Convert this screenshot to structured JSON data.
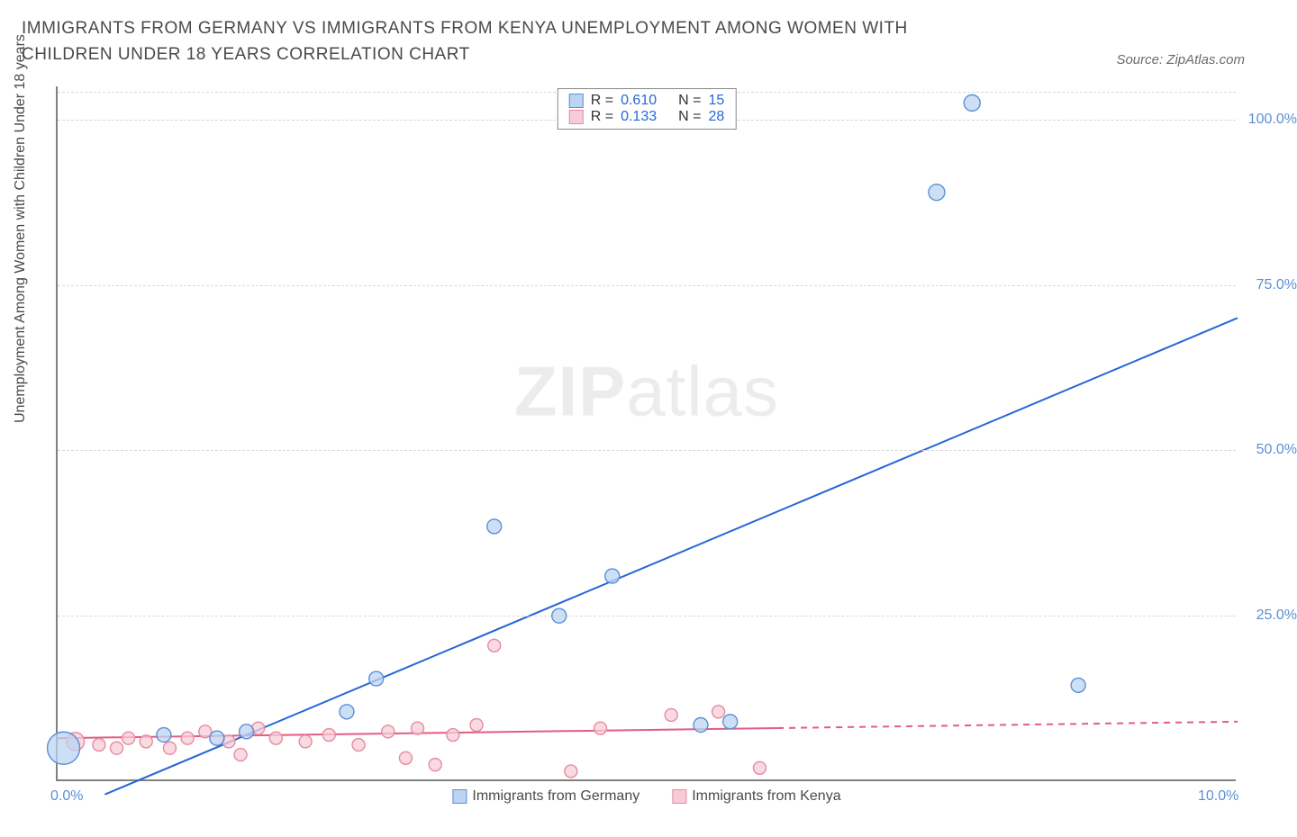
{
  "header": {
    "title": "IMMIGRANTS FROM GERMANY VS IMMIGRANTS FROM KENYA UNEMPLOYMENT AMONG WOMEN WITH CHILDREN UNDER 18 YEARS CORRELATION CHART",
    "source": "Source: ZipAtlas.com"
  },
  "watermark": {
    "bold": "ZIP",
    "thin": "atlas"
  },
  "chart": {
    "type": "scatter-with-regression",
    "ylabel": "Unemployment Among Women with Children Under 18 years",
    "xlim": [
      0,
      10
    ],
    "ylim": [
      0,
      105
    ],
    "xticks": [
      {
        "v": 0,
        "label": "0.0%"
      },
      {
        "v": 10,
        "label": "10.0%"
      }
    ],
    "yticks": [
      {
        "v": 25,
        "label": "25.0%"
      },
      {
        "v": 50,
        "label": "50.0%"
      },
      {
        "v": 75,
        "label": "75.0%"
      },
      {
        "v": 100,
        "label": "100.0%"
      }
    ],
    "grid_dash": "6,5",
    "grid_color": "#d8d8d8",
    "background_color": "#ffffff",
    "series": [
      {
        "name": "Immigrants from Germany",
        "color_fill": "#bcd4f2",
        "color_stroke": "#5b8fd6",
        "line_color": "#2766d8",
        "line_width": 2,
        "r_value": "0.610",
        "n_value": "15",
        "regression": {
          "x1": 0.4,
          "y1": -2,
          "x2": 10,
          "y2": 70,
          "dash_from_x": null
        },
        "points": [
          {
            "x": 0.05,
            "y": 5.0,
            "r": 18
          },
          {
            "x": 0.9,
            "y": 7.0,
            "r": 8
          },
          {
            "x": 1.35,
            "y": 6.5,
            "r": 8
          },
          {
            "x": 1.6,
            "y": 7.5,
            "r": 8
          },
          {
            "x": 2.45,
            "y": 10.5,
            "r": 8
          },
          {
            "x": 2.7,
            "y": 15.5,
            "r": 8
          },
          {
            "x": 3.7,
            "y": 38.5,
            "r": 8
          },
          {
            "x": 4.25,
            "y": 25.0,
            "r": 8
          },
          {
            "x": 4.7,
            "y": 31.0,
            "r": 8
          },
          {
            "x": 5.45,
            "y": 8.5,
            "r": 8
          },
          {
            "x": 5.7,
            "y": 9.0,
            "r": 8
          },
          {
            "x": 7.45,
            "y": 89.0,
            "r": 9
          },
          {
            "x": 7.75,
            "y": 102.5,
            "r": 9
          },
          {
            "x": 8.65,
            "y": 14.5,
            "r": 8
          }
        ]
      },
      {
        "name": "Immigrants from Kenya",
        "color_fill": "#f6cdd6",
        "color_stroke": "#e68aa4",
        "line_color": "#e45b85",
        "line_width": 2,
        "r_value": "0.133",
        "n_value": "28",
        "regression": {
          "x1": 0,
          "y1": 6.5,
          "x2": 10,
          "y2": 9.0,
          "dash_from_x": 6.1
        },
        "points": [
          {
            "x": 0.15,
            "y": 6.0,
            "r": 10
          },
          {
            "x": 0.35,
            "y": 5.5,
            "r": 7
          },
          {
            "x": 0.5,
            "y": 5.0,
            "r": 7
          },
          {
            "x": 0.6,
            "y": 6.5,
            "r": 7
          },
          {
            "x": 0.75,
            "y": 6.0,
            "r": 7
          },
          {
            "x": 0.95,
            "y": 5.0,
            "r": 7
          },
          {
            "x": 1.1,
            "y": 6.5,
            "r": 7
          },
          {
            "x": 1.25,
            "y": 7.5,
            "r": 7
          },
          {
            "x": 1.45,
            "y": 6.0,
            "r": 7
          },
          {
            "x": 1.55,
            "y": 4.0,
            "r": 7
          },
          {
            "x": 1.7,
            "y": 8.0,
            "r": 7
          },
          {
            "x": 1.85,
            "y": 6.5,
            "r": 7
          },
          {
            "x": 2.1,
            "y": 6.0,
            "r": 7
          },
          {
            "x": 2.3,
            "y": 7.0,
            "r": 7
          },
          {
            "x": 2.55,
            "y": 5.5,
            "r": 7
          },
          {
            "x": 2.8,
            "y": 7.5,
            "r": 7
          },
          {
            "x": 2.95,
            "y": 3.5,
            "r": 7
          },
          {
            "x": 3.05,
            "y": 8.0,
            "r": 7
          },
          {
            "x": 3.2,
            "y": 2.5,
            "r": 7
          },
          {
            "x": 3.35,
            "y": 7.0,
            "r": 7
          },
          {
            "x": 3.55,
            "y": 8.5,
            "r": 7
          },
          {
            "x": 3.7,
            "y": 20.5,
            "r": 7
          },
          {
            "x": 4.35,
            "y": 1.5,
            "r": 7
          },
          {
            "x": 4.6,
            "y": 8.0,
            "r": 7
          },
          {
            "x": 5.2,
            "y": 10.0,
            "r": 7
          },
          {
            "x": 5.6,
            "y": 10.5,
            "r": 7
          },
          {
            "x": 5.95,
            "y": 2.0,
            "r": 7
          }
        ]
      }
    ],
    "x_legend": [
      {
        "label": "Immigrants from Germany",
        "fill": "#bcd4f2",
        "stroke": "#5b8fd6"
      },
      {
        "label": "Immigrants from Kenya",
        "fill": "#f6cdd6",
        "stroke": "#e68aa4"
      }
    ],
    "stats_labels": {
      "R": "R =",
      "N": "N ="
    }
  }
}
